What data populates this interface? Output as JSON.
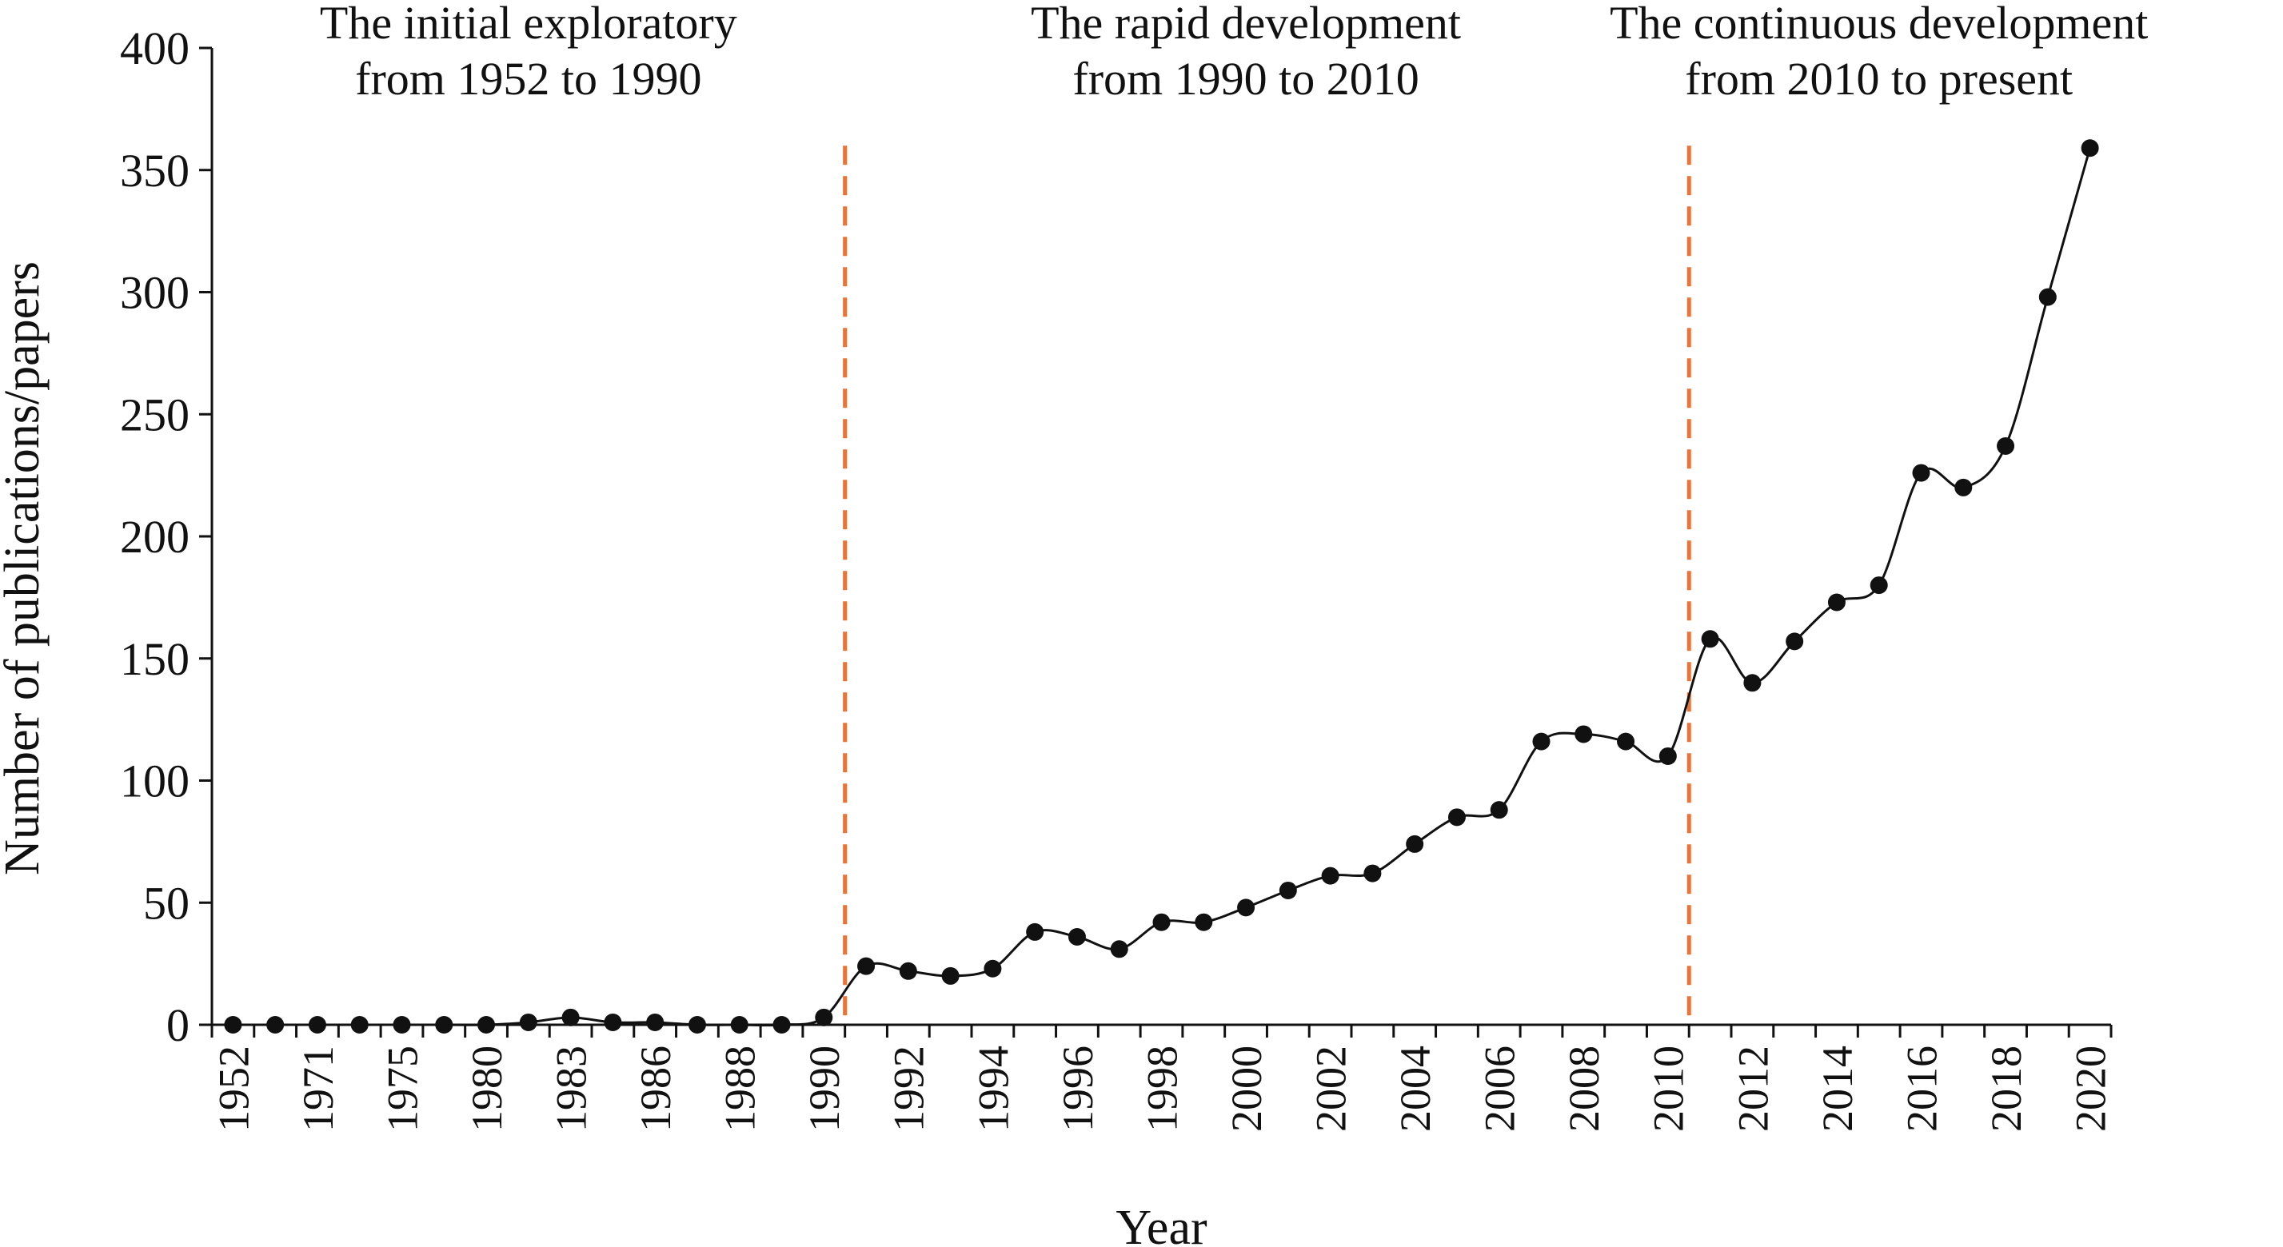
{
  "chart_data": {
    "type": "line",
    "xlabel": "Year",
    "ylabel": "Number of publications/papers",
    "ylim": [
      0,
      400
    ],
    "yticks": [
      0,
      50,
      100,
      150,
      200,
      250,
      300,
      350,
      400
    ],
    "x_tick_labels": [
      "1952",
      "1971",
      "1975",
      "1980",
      "1983",
      "1986",
      "1988",
      "1990",
      "1992",
      "1994",
      "1996",
      "1998",
      "2000",
      "2002",
      "2004",
      "2006",
      "2008",
      "2010",
      "2012",
      "2014",
      "2016",
      "2018",
      "2020"
    ],
    "values": [
      0,
      0,
      0,
      0,
      0,
      0,
      0,
      1,
      3,
      1,
      1,
      0,
      0,
      0,
      3,
      24,
      22,
      20,
      23,
      38,
      36,
      31,
      42,
      42,
      48,
      55,
      61,
      62,
      74,
      85,
      88,
      116,
      119,
      116,
      110,
      158,
      140,
      157,
      173,
      180,
      226,
      220,
      237,
      298,
      359
    ],
    "grid": false,
    "marker": "circle",
    "line_style": "smooth",
    "colors": {
      "line": "#111111",
      "marker": "#111111",
      "divider": "#e8743b"
    },
    "dividers": [
      {
        "after_index": 14
      },
      {
        "after_index": 34
      }
    ],
    "phases": [
      {
        "line1": "The initial exploratory",
        "line2": "from 1952 to 1990",
        "start_index": 0,
        "end_index": 14
      },
      {
        "line1": "The  rapid development",
        "line2": "from 1990 to 2010",
        "start_index": 14,
        "end_index": 34
      },
      {
        "line1": "The continuous development",
        "line2": "from 2010 to present",
        "start_index": 34,
        "end_index": 44
      }
    ]
  }
}
